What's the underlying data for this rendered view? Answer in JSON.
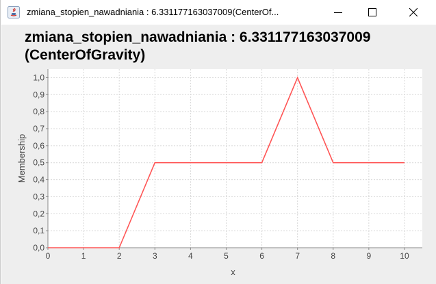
{
  "window": {
    "title": "zmiana_stopien_nawadniania : 6.331177163037009(CenterOf..."
  },
  "chart_data": {
    "type": "line",
    "title": "zmiana_stopien_nawadniania : 6.331177163037009 (CenterOfGravity)",
    "xlabel": "x",
    "ylabel": "Membership",
    "xlim": [
      0,
      10.5
    ],
    "ylim": [
      0,
      1.05
    ],
    "x_ticks": [
      "0",
      "1",
      "2",
      "3",
      "4",
      "5",
      "6",
      "7",
      "8",
      "9",
      "10"
    ],
    "y_ticks": [
      "0,0",
      "0,1",
      "0,2",
      "0,3",
      "0,4",
      "0,5",
      "0,6",
      "0,7",
      "0,8",
      "0,9",
      "1,0"
    ],
    "grid": true,
    "series": [
      {
        "color": "#ff5555",
        "x": [
          0,
          2,
          3,
          6,
          7,
          8,
          10
        ],
        "y": [
          0,
          0,
          0.5,
          0.5,
          1.0,
          0.5,
          0.5
        ]
      }
    ]
  }
}
